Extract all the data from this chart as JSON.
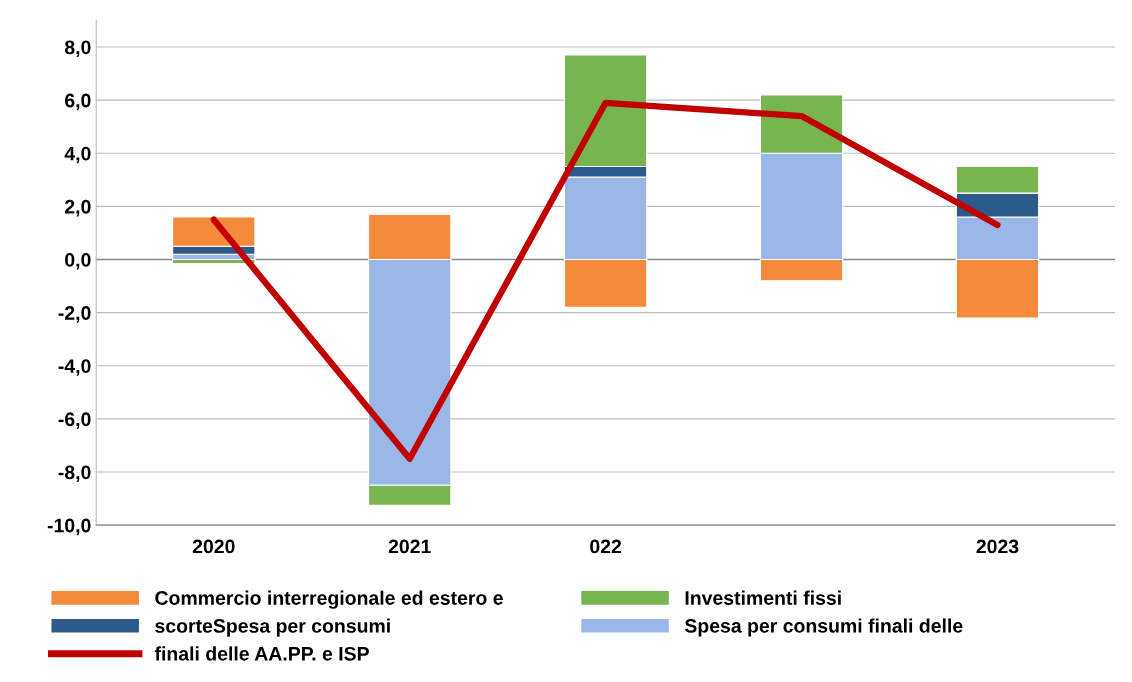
{
  "chart_data": {
    "type": "bar",
    "stacked": true,
    "categories": [
      "2020",
      "2021",
      "022",
      null,
      "2023"
    ],
    "series": [
      {
        "name": "Spesa per consumi finali delle",
        "color": "#9bb7e8",
        "values": [
          0.2,
          -8.5,
          3.1,
          4.0,
          1.6
        ]
      },
      {
        "name": "scorteSpesa per consumi",
        "color": "#2c5a8a",
        "values": [
          0.3,
          null,
          0.4,
          null,
          0.9
        ]
      },
      {
        "name": "Commercio interregionale ed estero e",
        "color": "#f58a3c",
        "values": [
          1.1,
          1.7,
          -1.8,
          -0.8,
          -2.2
        ]
      },
      {
        "name": "Investimenti fissi",
        "color": "#78b450",
        "values": [
          -0.15,
          -0.75,
          4.2,
          2.2,
          1.0
        ]
      },
      {
        "name": "finali delle AA.PP. e ISP",
        "type": "line",
        "color": "#c00000",
        "values": [
          1.5,
          -7.5,
          5.9,
          5.4,
          1.3
        ]
      }
    ],
    "ylim": [
      -10,
      9
    ],
    "yticks": [
      {
        "value": -10,
        "label": "-10,0"
      },
      {
        "value": -8,
        "label": "-8,0"
      },
      {
        "value": -6,
        "label": "-6,0"
      },
      {
        "value": -4,
        "label": "-4,0"
      },
      {
        "value": -2,
        "label": "-2,0"
      },
      {
        "value": 0,
        "label": "0,0"
      },
      {
        "value": 2,
        "label": "2,0"
      },
      {
        "value": 4,
        "label": "4,0"
      },
      {
        "value": 6,
        "label": "6,0"
      },
      {
        "value": 8,
        "label": "8,0"
      }
    ],
    "grid": "y",
    "legend": "bottom"
  }
}
